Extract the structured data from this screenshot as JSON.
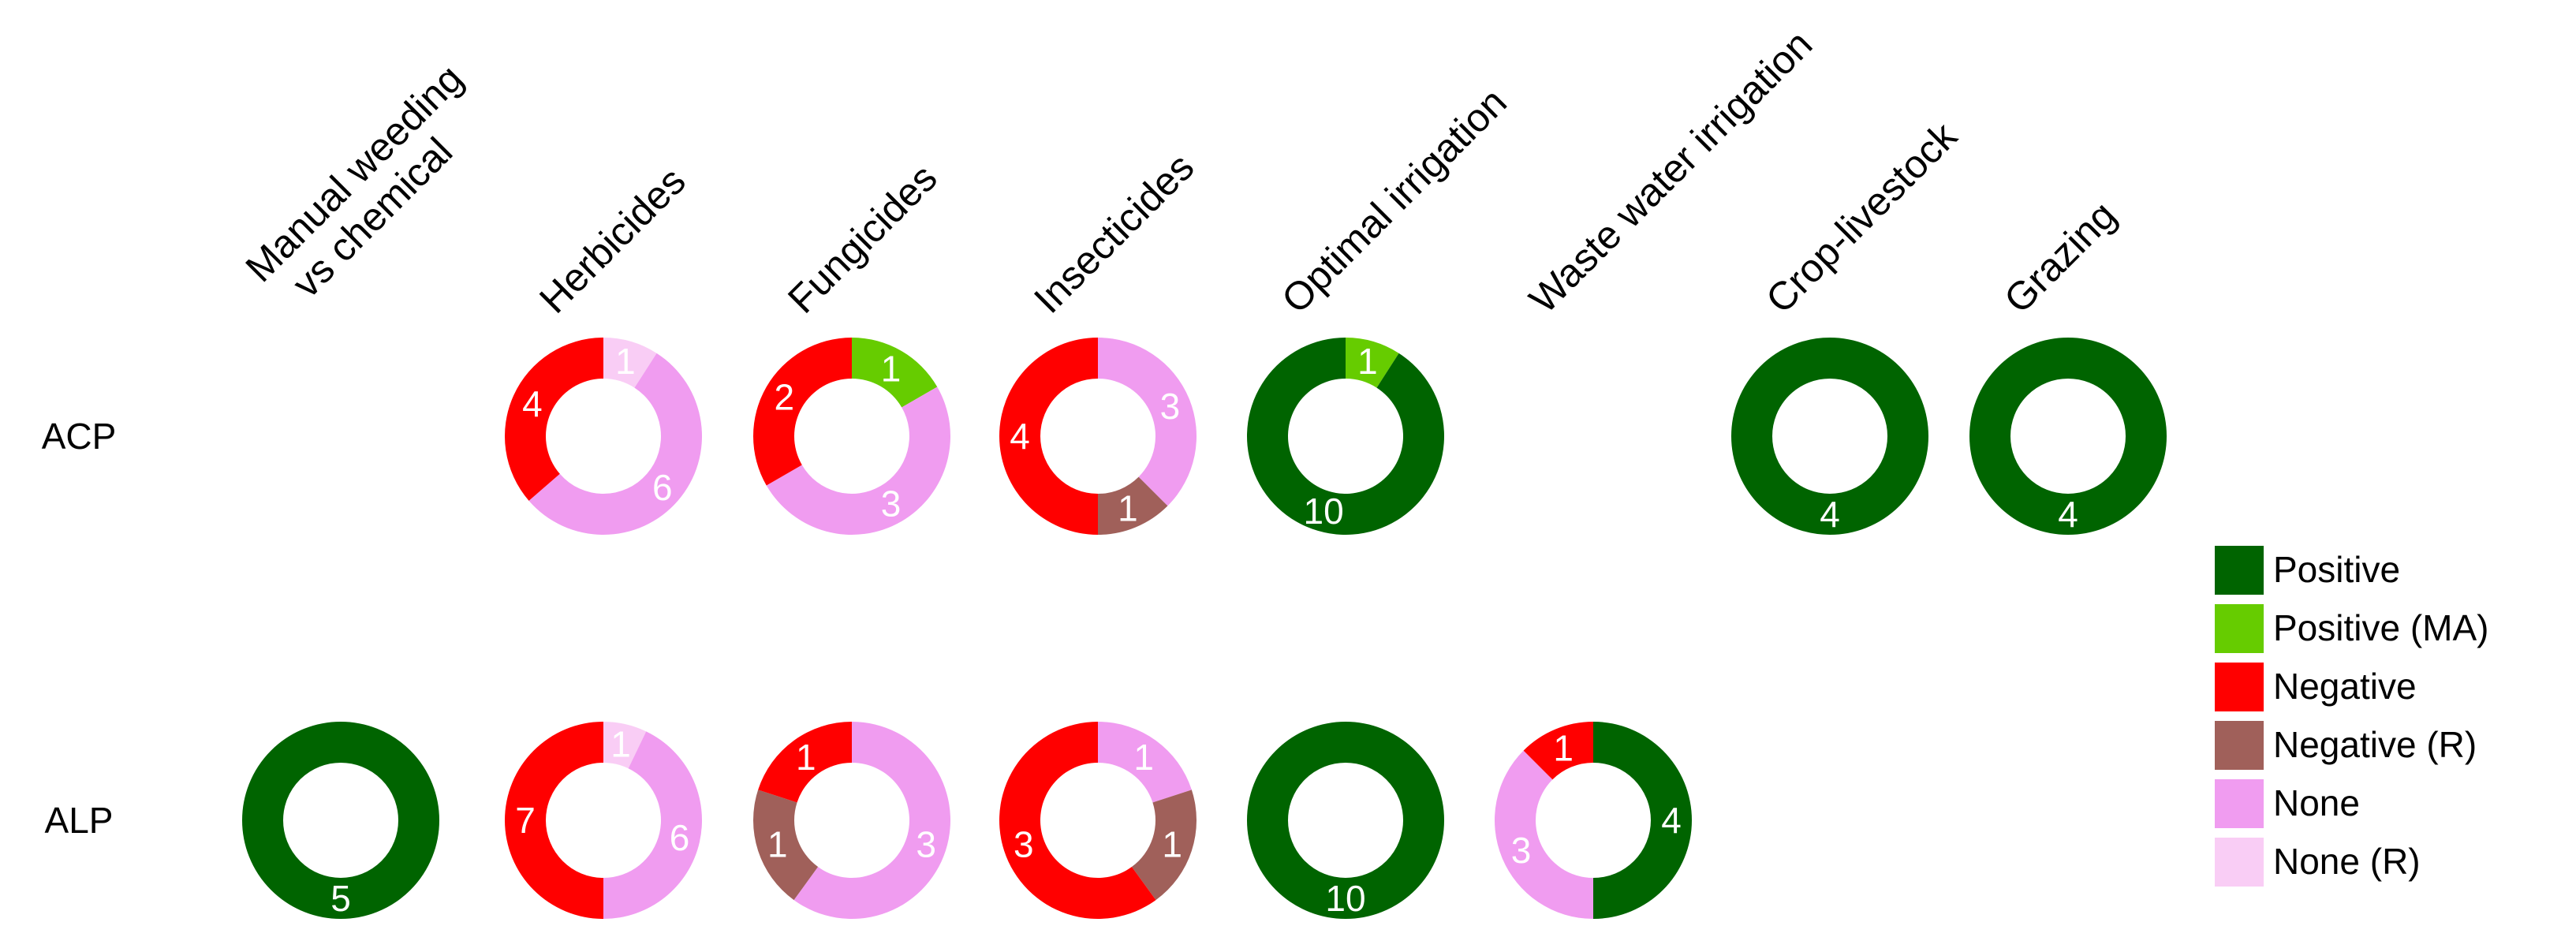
{
  "chart_data": {
    "type": "donut-grid",
    "columns": [
      [
        "Manual weeding",
        "vs chemical"
      ],
      [
        "Herbicides"
      ],
      [
        "Fungicides"
      ],
      [
        "Insecticides"
      ],
      [
        "Optimal irrigation"
      ],
      [
        "Waste water irrigation"
      ],
      [
        "Crop-livestock"
      ],
      [
        "Grazing"
      ]
    ],
    "rows": [
      "ACP",
      "ALP"
    ],
    "colors": {
      "Positive": "#006400",
      "Positive (MA)": "#66cc00",
      "Negative": "#ff0000",
      "Negative (R)": "#a0605a",
      "None": "#f09cf0",
      "None (R)": "#f9cdf5"
    },
    "legend": [
      "Positive",
      "Positive (MA)",
      "Negative",
      "Negative (R)",
      "None",
      "None (R)"
    ],
    "cells": [
      {
        "row": "ACP",
        "column": "Herbicides",
        "slices": [
          {
            "category": "None (R)",
            "value": 1
          },
          {
            "category": "None",
            "value": 6
          },
          {
            "category": "Negative",
            "value": 4
          }
        ]
      },
      {
        "row": "ACP",
        "column": "Fungicides",
        "slices": [
          {
            "category": "Positive (MA)",
            "value": 1
          },
          {
            "category": "None",
            "value": 3
          },
          {
            "category": "Negative",
            "value": 2
          }
        ]
      },
      {
        "row": "ACP",
        "column": "Insecticides",
        "slices": [
          {
            "category": "None",
            "value": 3
          },
          {
            "category": "Negative (R)",
            "value": 1
          },
          {
            "category": "Negative",
            "value": 4
          }
        ]
      },
      {
        "row": "ACP",
        "column": "Optimal irrigation",
        "slices": [
          {
            "category": "Positive (MA)",
            "value": 1
          },
          {
            "category": "Positive",
            "value": 10
          }
        ]
      },
      {
        "row": "ACP",
        "column": "Crop-livestock",
        "slices": [
          {
            "category": "Positive",
            "value": 4
          }
        ]
      },
      {
        "row": "ACP",
        "column": "Grazing",
        "slices": [
          {
            "category": "Positive",
            "value": 4
          }
        ]
      },
      {
        "row": "ALP",
        "column": "Manual weeding vs chemical",
        "slices": [
          {
            "category": "Positive",
            "value": 5
          }
        ]
      },
      {
        "row": "ALP",
        "column": "Herbicides",
        "slices": [
          {
            "category": "None (R)",
            "value": 1
          },
          {
            "category": "None",
            "value": 6
          },
          {
            "category": "Negative",
            "value": 7
          }
        ]
      },
      {
        "row": "ALP",
        "column": "Fungicides",
        "slices": [
          {
            "category": "None",
            "value": 3
          },
          {
            "category": "Negative (R)",
            "value": 1
          },
          {
            "category": "Negative",
            "value": 1
          }
        ]
      },
      {
        "row": "ALP",
        "column": "Insecticides",
        "slices": [
          {
            "category": "None",
            "value": 1
          },
          {
            "category": "Negative (R)",
            "value": 1
          },
          {
            "category": "Negative",
            "value": 3
          }
        ]
      },
      {
        "row": "ALP",
        "column": "Optimal irrigation",
        "slices": [
          {
            "category": "Positive",
            "value": 10
          }
        ]
      },
      {
        "row": "ALP",
        "column": "Waste water irrigation",
        "slices": [
          {
            "category": "Positive",
            "value": 4
          },
          {
            "category": "None",
            "value": 3
          },
          {
            "category": "Negative",
            "value": 1
          }
        ]
      }
    ]
  }
}
